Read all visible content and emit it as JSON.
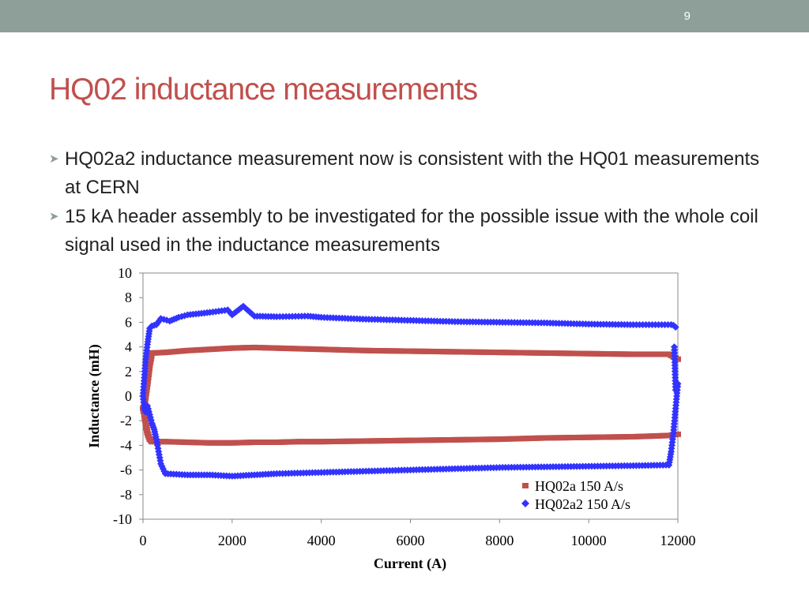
{
  "slide": {
    "number": "9",
    "title": "HQ02 inductance measurements",
    "bullets": [
      " HQ02a2 inductance measurement now is consistent with the HQ01 measurements at CERN",
      " 15 kA header assembly to be investigated for the possible issue with the whole coil signal used in the inductance measurements"
    ]
  },
  "chart_data": {
    "type": "scatter",
    "title": "",
    "xlabel": "Current (A)",
    "ylabel": "Inductance (mH)",
    "xlim": [
      0,
      12000
    ],
    "ylim": [
      -10,
      10
    ],
    "xticks": [
      0,
      2000,
      4000,
      6000,
      8000,
      10000,
      12000
    ],
    "yticks": [
      10,
      8,
      6,
      4,
      2,
      0,
      -2,
      -4,
      -6,
      -8,
      -10
    ],
    "grid": false,
    "legend_position": "bottom-right",
    "series": [
      {
        "name": "HQ02a 150 A/s",
        "color": "#c0504d",
        "marker": "square",
        "x": [
          12000,
          11800,
          11000,
          10000,
          9000,
          8000,
          7000,
          6000,
          5000,
          4000,
          3500,
          3000,
          2500,
          2000,
          1500,
          1000,
          500,
          200,
          150,
          100,
          60,
          30,
          0,
          30,
          60,
          100,
          150,
          200,
          500,
          1000,
          1500,
          2000,
          2500,
          3000,
          3500,
          4000,
          5000,
          6000,
          7000,
          8000,
          9000,
          10000,
          11000,
          11800,
          12000
        ],
        "y": [
          3.0,
          3.4,
          3.4,
          3.45,
          3.5,
          3.55,
          3.6,
          3.65,
          3.7,
          3.8,
          3.85,
          3.9,
          3.95,
          3.9,
          3.8,
          3.7,
          3.55,
          3.5,
          2.5,
          1.0,
          0.0,
          -0.8,
          -1.0,
          -1.5,
          -2.2,
          -3.0,
          -3.5,
          -3.7,
          -3.7,
          -3.75,
          -3.8,
          -3.8,
          -3.75,
          -3.75,
          -3.7,
          -3.7,
          -3.65,
          -3.6,
          -3.55,
          -3.5,
          -3.4,
          -3.35,
          -3.3,
          -3.2,
          -3.1
        ]
      },
      {
        "name": "HQ02a2 150 A/s",
        "color": "#3333ff",
        "marker": "diamond",
        "x": [
          11950,
          11900,
          11850,
          11000,
          10000,
          9000,
          8000,
          7000,
          6000,
          5000,
          4000,
          3700,
          3000,
          2500,
          2250,
          2000,
          1900,
          1500,
          1000,
          800,
          600,
          400,
          300,
          200,
          150,
          100,
          60,
          30,
          0,
          30,
          60,
          100,
          150,
          200,
          250,
          300,
          350,
          400,
          500,
          1000,
          1500,
          2000,
          2500,
          3000,
          4000,
          5000,
          6000,
          7000,
          8000,
          9000,
          10000,
          11000,
          11800,
          11850,
          11900,
          11950,
          12000,
          11950,
          11920
        ],
        "y": [
          5.6,
          5.75,
          5.8,
          5.8,
          5.85,
          5.95,
          6.0,
          6.05,
          6.15,
          6.25,
          6.4,
          6.5,
          6.45,
          6.5,
          7.3,
          6.6,
          7.0,
          6.8,
          6.6,
          6.4,
          6.1,
          6.3,
          5.8,
          5.7,
          5.5,
          4.2,
          3.0,
          1.5,
          0.0,
          -1.0,
          -1.3,
          -0.8,
          -1.5,
          -2.2,
          -2.7,
          -3.5,
          -4.5,
          -5.5,
          -6.3,
          -6.4,
          -6.4,
          -6.5,
          -6.4,
          -6.3,
          -6.2,
          -6.1,
          -6.0,
          -5.9,
          -5.8,
          -5.75,
          -5.7,
          -5.65,
          -5.6,
          -4.5,
          -3.0,
          -1.0,
          1.0,
          0.5,
          4.0
        ]
      }
    ]
  }
}
